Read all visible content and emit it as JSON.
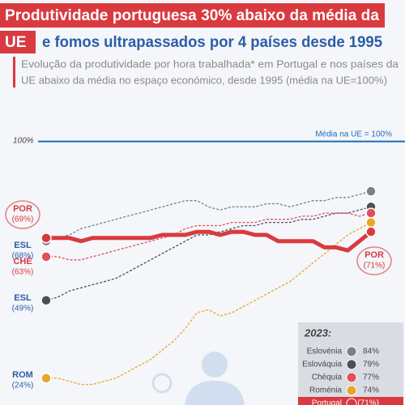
{
  "chart_data": {
    "type": "line",
    "title": [
      "Produtividade portuguesa 30% abaixo da média da",
      "UE",
      "e fomos ultrapassados por 4 países desde 1995"
    ],
    "subtitle": [
      "Evolução da produtividade por hora trabalhada* em Portugal e nos países da",
      "UE abaixo da média no espaço económico, desde 1995 (média na UE=100%)"
    ],
    "reference_label": "Média na UE = 100%",
    "ylim": [
      18,
      122
    ],
    "yticks": [
      {
        "value": 100,
        "label": "100%"
      }
    ],
    "categories": [
      null,
      null,
      null,
      null,
      null,
      null,
      null,
      null,
      null,
      null,
      null,
      null,
      null,
      null,
      null,
      null,
      null,
      null,
      null,
      null,
      null,
      null,
      null,
      null,
      null,
      null,
      null,
      null,
      null
    ],
    "legend_title": "2023:",
    "series": [
      {
        "name": "Eslovénia",
        "color": "#7a7f88",
        "start_code": "ESL",
        "start_label": "(68%)",
        "end_label": "84%",
        "values": [
          68,
          69,
          70,
          72,
          73,
          74,
          75,
          76,
          77,
          78,
          79,
          80,
          81,
          81,
          79,
          78,
          79,
          79,
          79,
          80,
          80,
          79,
          80,
          81,
          81,
          82,
          82,
          83,
          84
        ]
      },
      {
        "name": "Eslováquia",
        "color": "#4a4f5a",
        "start_code": "ESL",
        "start_label": "(49%)",
        "end_label": "79%",
        "values": [
          49,
          50,
          52,
          53,
          54,
          55,
          56,
          58,
          60,
          62,
          64,
          66,
          68,
          70,
          70,
          71,
          72,
          73,
          73,
          74,
          74,
          74,
          75,
          75,
          76,
          77,
          77,
          78,
          79
        ]
      },
      {
        "name": "Chéquia",
        "color": "#e0505a",
        "start_code": "CHÉ",
        "start_label": "(63%)",
        "end_label": "77%",
        "values": [
          63,
          63,
          62,
          62,
          63,
          64,
          65,
          66,
          67,
          68,
          69,
          70,
          72,
          73,
          73,
          73,
          74,
          74,
          74,
          75,
          75,
          75,
          76,
          76,
          77,
          77,
          77,
          76,
          77
        ]
      },
      {
        "name": "Roménia",
        "color": "#e8a628",
        "start_code": "ROM",
        "start_label": "(24%)",
        "end_label": "74%",
        "values": [
          24,
          24,
          23,
          22,
          22,
          23,
          24,
          26,
          28,
          30,
          33,
          36,
          40,
          45,
          46,
          44,
          45,
          47,
          49,
          51,
          53,
          55,
          58,
          61,
          64,
          67,
          70,
          72,
          74
        ]
      },
      {
        "name": "Portugal",
        "color": "#d93a40",
        "start_code": "POR",
        "start_label": "(69%)",
        "end_code": "POR",
        "end_label": "(71%)",
        "values": [
          69,
          69,
          69,
          68,
          69,
          69,
          69,
          69,
          69,
          69,
          70,
          70,
          70,
          71,
          71,
          70,
          71,
          71,
          70,
          70,
          68,
          68,
          68,
          68,
          66,
          66,
          65,
          68,
          71
        ]
      }
    ]
  }
}
